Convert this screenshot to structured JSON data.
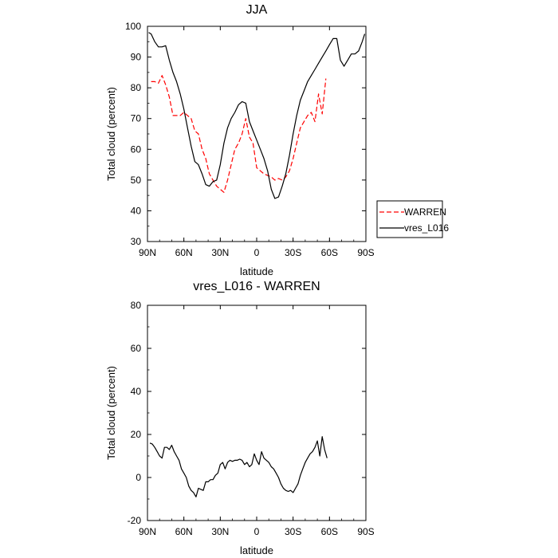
{
  "chart_data": [
    {
      "type": "line",
      "title": "JJA",
      "xlabel": "latitude",
      "ylabel": "Total cloud (percent)",
      "xlim": [
        90,
        -90
      ],
      "ylim": [
        30,
        100
      ],
      "xticks": [
        {
          "value": 90,
          "label": "90N"
        },
        {
          "value": 60,
          "label": "60N"
        },
        {
          "value": 30,
          "label": "30N"
        },
        {
          "value": 0,
          "label": "0"
        },
        {
          "value": -30,
          "label": "30S"
        },
        {
          "value": -60,
          "label": "60S"
        },
        {
          "value": -90,
          "label": "90S"
        }
      ],
      "yticks": [
        30,
        40,
        50,
        60,
        70,
        80,
        90,
        100
      ],
      "legend_position": "outside-right",
      "series": [
        {
          "name": "WARREN",
          "color": "#ff0000",
          "dash": true,
          "x": [
            87,
            84,
            81,
            78,
            75,
            72,
            69,
            66,
            63,
            60,
            57,
            54,
            51,
            48,
            45,
            42,
            39,
            36,
            33,
            30,
            27,
            24,
            21,
            18,
            15,
            12,
            9,
            6,
            3,
            0,
            -3,
            -6,
            -9,
            -12,
            -15,
            -18,
            -21,
            -24,
            -27,
            -30,
            -33,
            -36,
            -39,
            -42,
            -45,
            -48,
            -51,
            -54,
            -57,
            -60
          ],
          "y": [
            82,
            82,
            81.5,
            84,
            81,
            77,
            71,
            71,
            71,
            72,
            71,
            70,
            66,
            65,
            60,
            57,
            52,
            50,
            48,
            47,
            46,
            50,
            55,
            60,
            62,
            65,
            70,
            64,
            62,
            54,
            53,
            52,
            51.5,
            51,
            50,
            50.5,
            50,
            51,
            53,
            57,
            62,
            67,
            69,
            71,
            72,
            69,
            78,
            71.5,
            83,
            null
          ]
        },
        {
          "name": "vres_L016",
          "color": "#000000",
          "dash": false,
          "x": [
            89,
            87,
            84,
            81,
            78,
            75,
            72,
            69,
            66,
            63,
            60,
            57,
            54,
            51,
            48,
            45,
            42,
            39,
            36,
            33,
            30,
            27,
            24,
            21,
            18,
            15,
            12,
            9,
            6,
            3,
            0,
            -3,
            -6,
            -9,
            -12,
            -15,
            -18,
            -21,
            -24,
            -27,
            -30,
            -33,
            -36,
            -39,
            -42,
            -45,
            -48,
            -51,
            -54,
            -57,
            -60,
            -63,
            -66,
            -69,
            -72,
            -75,
            -78,
            -81,
            -84,
            -87,
            -89
          ],
          "y": [
            98,
            97.5,
            95,
            93.3,
            93.3,
            93.7,
            89,
            85,
            82,
            78,
            73,
            67,
            61,
            56,
            55,
            52,
            48.5,
            48,
            49.5,
            50,
            55,
            62,
            67,
            70,
            72,
            74.5,
            75.5,
            75,
            69,
            66,
            63,
            60,
            57,
            53,
            47,
            44,
            44.5,
            48,
            52,
            58,
            65,
            71,
            76,
            79,
            82,
            84,
            86,
            88,
            90,
            92,
            94,
            96,
            96,
            89,
            87,
            89,
            91,
            91,
            92,
            95,
            97.5
          ]
        }
      ]
    },
    {
      "type": "line",
      "title": "vres_L016 - WARREN",
      "xlabel": "latitude",
      "ylabel": "Total cloud (percent)",
      "xlim": [
        90,
        -90
      ],
      "ylim": [
        -20,
        80
      ],
      "xticks": [
        {
          "value": 90,
          "label": "90N"
        },
        {
          "value": 60,
          "label": "60N"
        },
        {
          "value": 30,
          "label": "30N"
        },
        {
          "value": 0,
          "label": "0"
        },
        {
          "value": -30,
          "label": "30S"
        },
        {
          "value": -60,
          "label": "60S"
        },
        {
          "value": -90,
          "label": "90S"
        }
      ],
      "yticks": [
        -20,
        0,
        20,
        40,
        60,
        80
      ],
      "series": [
        {
          "color": "#000000",
          "dash": false,
          "x": [
            88,
            86,
            84,
            82,
            80,
            78,
            76,
            74,
            72,
            70,
            68,
            66,
            64,
            62,
            60,
            58,
            56,
            54,
            52,
            50,
            48,
            46,
            44,
            42,
            40,
            38,
            36,
            34,
            32,
            30,
            28,
            26,
            24,
            22,
            20,
            18,
            16,
            14,
            12,
            10,
            8,
            6,
            4,
            2,
            0,
            -2,
            -4,
            -6,
            -8,
            -10,
            -12,
            -14,
            -16,
            -18,
            -20,
            -22,
            -24,
            -26,
            -28,
            -30,
            -32,
            -34,
            -36,
            -38,
            -40,
            -42,
            -44,
            -46,
            -48,
            -50,
            -52,
            -54,
            -56,
            -58
          ],
          "y": [
            16,
            15.5,
            14,
            12,
            10,
            9,
            14,
            14,
            13,
            15,
            12,
            10,
            8,
            4,
            2,
            0,
            -4,
            -6,
            -7,
            -9,
            -5,
            -5.5,
            -6,
            -2,
            -2,
            -1,
            -1,
            1,
            2,
            6,
            7,
            4,
            7,
            8,
            7.5,
            8,
            8,
            8.5,
            8,
            6,
            7,
            5,
            6,
            11,
            8,
            6,
            12,
            9,
            8,
            7,
            5,
            4,
            2,
            0,
            -3,
            -5,
            -6,
            -6.5,
            -6,
            -7,
            -5,
            -3,
            1,
            4,
            7,
            9,
            11,
            12,
            14,
            17,
            10,
            19,
            13,
            9
          ]
        }
      ]
    }
  ]
}
